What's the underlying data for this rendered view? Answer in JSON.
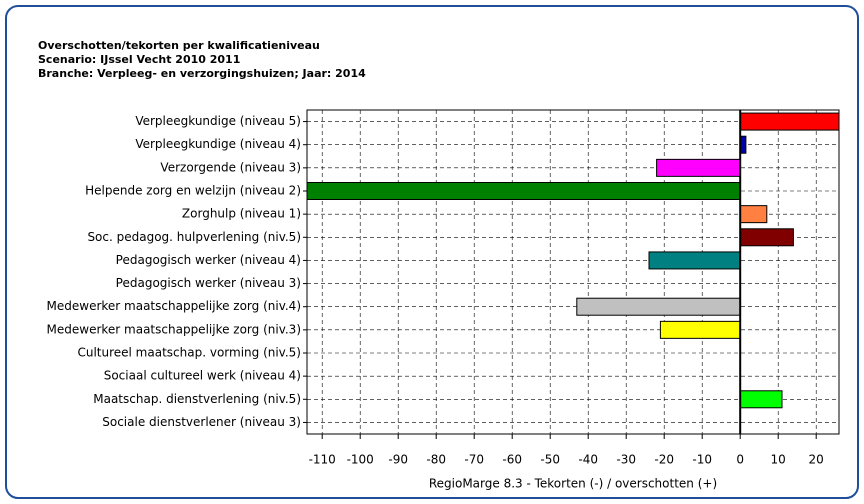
{
  "chart_data": {
    "type": "barh",
    "title_lines": [
      "Overschotten/tekorten per kwalificatieniveau",
      "Scenario: IJssel Vecht 2010 2011",
      "Branche: Verpleeg- en verzorgingshuizen; Jaar: 2014"
    ],
    "xlabel": "RegioMarge 8.3 - Tekorten (-) / overschotten (+)",
    "categories": [
      "Verpleegkundige (niveau 5)",
      "Verpleegkundige (niveau 4)",
      "Verzorgende (niveau 3)",
      "Helpende zorg en welzijn (niveau 2)",
      "Zorghulp (niveau 1)",
      "Soc. pedagog. hulpverlening (niv.5)",
      "Pedagogisch werker (niveau 4)",
      "Pedagogisch werker (niveau 3)",
      "Medewerker maatschappelijke zorg (niv.4)",
      "Medewerker maatschappelijke zorg (niv.3)",
      "Cultureel maatschap. vorming (niv.5)",
      "Sociaal cultureel werk (niveau 4)",
      "Maatschap. dienstverlening (niv.5)",
      "Sociale dienstverlener (niveau 3)"
    ],
    "values": [
      26,
      1.5,
      -22,
      -114,
      7,
      14,
      -24,
      0,
      -43,
      -21,
      0,
      0,
      11,
      0
    ],
    "colors": [
      "#ff0000",
      "#0000aa",
      "#ff00ff",
      "#008000",
      "#ff8040",
      "#800000",
      "#008080",
      "#ffff00",
      "#c0c0c0",
      "#ffff00",
      "#800080",
      "#800080",
      "#00ff00",
      "#00ffff"
    ],
    "xlim": [
      -114,
      26
    ],
    "xticks": [
      -110,
      -100,
      -90,
      -80,
      -70,
      -60,
      -50,
      -40,
      -30,
      -20,
      -10,
      0,
      10,
      20
    ],
    "grid": true
  }
}
